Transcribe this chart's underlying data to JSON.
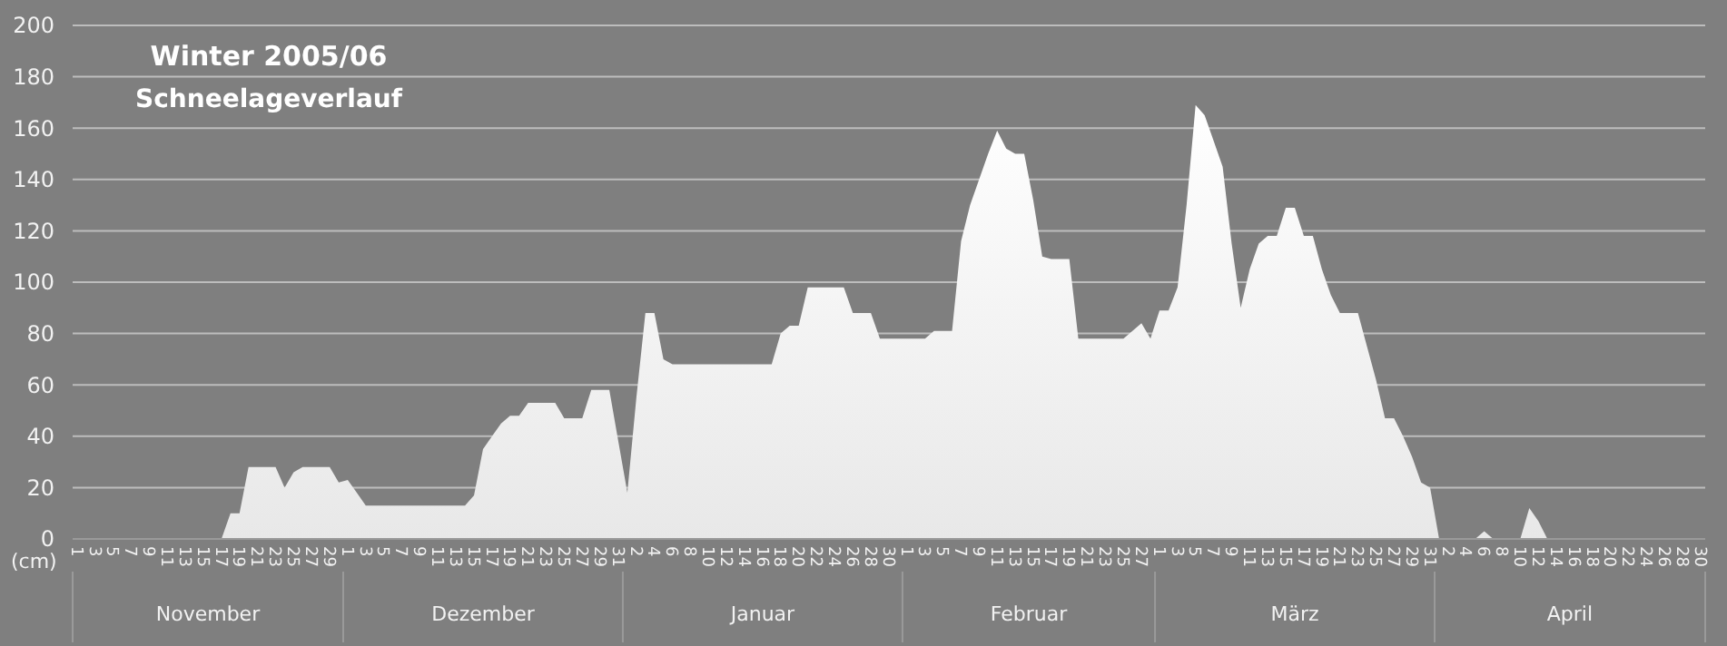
{
  "chart_data": {
    "type": "area",
    "title": "Winter 2005/06",
    "subtitle": "Schneelageverlauf",
    "ylabel": "(cm)",
    "x": [
      "2005-11-01",
      "2005-11-02",
      "2005-11-03",
      "2005-11-04",
      "2005-11-05",
      "2005-11-06",
      "2005-11-07",
      "2005-11-08",
      "2005-11-09",
      "2005-11-10",
      "2005-11-11",
      "2005-11-12",
      "2005-11-13",
      "2005-11-14",
      "2005-11-15",
      "2005-11-16",
      "2005-11-17",
      "2005-11-18",
      "2005-11-19",
      "2005-11-20",
      "2005-11-21",
      "2005-11-22",
      "2005-11-23",
      "2005-11-24",
      "2005-11-25",
      "2005-11-26",
      "2005-11-27",
      "2005-11-28",
      "2005-11-29",
      "2005-11-30",
      "2005-12-01",
      "2005-12-02",
      "2005-12-03",
      "2005-12-04",
      "2005-12-05",
      "2005-12-06",
      "2005-12-07",
      "2005-12-08",
      "2005-12-09",
      "2005-12-10",
      "2005-12-11",
      "2005-12-12",
      "2005-12-13",
      "2005-12-14",
      "2005-12-15",
      "2005-12-16",
      "2005-12-17",
      "2005-12-18",
      "2005-12-19",
      "2005-12-20",
      "2005-12-21",
      "2005-12-22",
      "2005-12-23",
      "2005-12-24",
      "2005-12-25",
      "2005-12-26",
      "2005-12-27",
      "2005-12-28",
      "2005-12-29",
      "2005-12-30",
      "2005-12-31",
      "2006-01-01",
      "2006-01-02",
      "2006-01-03",
      "2006-01-04",
      "2006-01-05",
      "2006-01-06",
      "2006-01-07",
      "2006-01-08",
      "2006-01-09",
      "2006-01-10",
      "2006-01-11",
      "2006-01-12",
      "2006-01-13",
      "2006-01-14",
      "2006-01-15",
      "2006-01-16",
      "2006-01-17",
      "2006-01-18",
      "2006-01-19",
      "2006-01-20",
      "2006-01-21",
      "2006-01-22",
      "2006-01-23",
      "2006-01-24",
      "2006-01-25",
      "2006-01-26",
      "2006-01-27",
      "2006-01-28",
      "2006-01-29",
      "2006-01-30",
      "2006-01-31",
      "2006-02-01",
      "2006-02-02",
      "2006-02-03",
      "2006-02-04",
      "2006-02-05",
      "2006-02-06",
      "2006-02-07",
      "2006-02-08",
      "2006-02-09",
      "2006-02-10",
      "2006-02-11",
      "2006-02-12",
      "2006-02-13",
      "2006-02-14",
      "2006-02-15",
      "2006-02-16",
      "2006-02-17",
      "2006-02-18",
      "2006-02-19",
      "2006-02-20",
      "2006-02-21",
      "2006-02-22",
      "2006-02-23",
      "2006-02-24",
      "2006-02-25",
      "2006-02-26",
      "2006-02-27",
      "2006-02-28",
      "2006-03-01",
      "2006-03-02",
      "2006-03-03",
      "2006-03-04",
      "2006-03-05",
      "2006-03-06",
      "2006-03-07",
      "2006-03-08",
      "2006-03-09",
      "2006-03-10",
      "2006-03-11",
      "2006-03-12",
      "2006-03-13",
      "2006-03-14",
      "2006-03-15",
      "2006-03-16",
      "2006-03-17",
      "2006-03-18",
      "2006-03-19",
      "2006-03-20",
      "2006-03-21",
      "2006-03-22",
      "2006-03-23",
      "2006-03-24",
      "2006-03-25",
      "2006-03-26",
      "2006-03-27",
      "2006-03-28",
      "2006-03-29",
      "2006-03-30",
      "2006-03-31",
      "2006-04-01",
      "2006-04-02",
      "2006-04-03",
      "2006-04-04",
      "2006-04-05",
      "2006-04-06",
      "2006-04-07",
      "2006-04-08",
      "2006-04-09",
      "2006-04-10",
      "2006-04-11",
      "2006-04-12",
      "2006-04-13",
      "2006-04-14",
      "2006-04-15",
      "2006-04-16",
      "2006-04-17",
      "2006-04-18",
      "2006-04-19",
      "2006-04-20",
      "2006-04-21",
      "2006-04-22",
      "2006-04-23",
      "2006-04-24",
      "2006-04-25",
      "2006-04-26",
      "2006-04-27",
      "2006-04-28",
      "2006-04-29",
      "2006-04-30"
    ],
    "values": [
      0,
      0,
      0,
      0,
      0,
      0,
      0,
      0,
      0,
      0,
      0,
      0,
      0,
      0,
      0,
      0,
      0,
      10,
      10,
      28,
      28,
      28,
      28,
      20,
      26,
      28,
      28,
      28,
      28,
      22,
      23,
      18,
      13,
      13,
      13,
      13,
      13,
      13,
      13,
      13,
      13,
      13,
      13,
      13,
      17,
      35,
      40,
      45,
      48,
      48,
      53,
      53,
      53,
      53,
      47,
      47,
      47,
      58,
      58,
      58,
      38,
      18,
      55,
      88,
      88,
      70,
      68,
      68,
      68,
      68,
      68,
      68,
      68,
      68,
      68,
      68,
      68,
      68,
      80,
      83,
      83,
      98,
      98,
      98,
      98,
      98,
      88,
      88,
      88,
      78,
      78,
      78,
      78,
      78,
      78,
      81,
      81,
      81,
      116,
      130,
      140,
      150,
      159,
      152,
      150,
      150,
      132,
      110,
      109,
      109,
      109,
      78,
      78,
      78,
      78,
      78,
      78,
      81,
      84,
      78,
      89,
      89,
      98,
      130,
      169,
      165,
      155,
      145,
      115,
      90,
      105,
      115,
      118,
      118,
      129,
      129,
      118,
      118,
      105,
      95,
      88,
      88,
      88,
      75,
      62,
      47,
      47,
      40,
      32,
      22,
      20,
      0,
      0,
      0,
      0,
      0,
      3,
      0,
      0,
      0,
      0,
      12,
      7,
      0,
      0,
      0,
      0,
      0,
      0,
      0,
      0,
      0,
      0,
      0,
      0,
      0,
      0,
      0,
      0,
      0,
      0
    ],
    "color": "#e8e8e8",
    "xlim": [
      "2005-10-31T12:00",
      "2006-04-30T12:00"
    ],
    "xticks": [
      {
        "value": "2005-11-01",
        "label": "1"
      },
      {
        "value": "2005-11-03",
        "label": "3"
      },
      {
        "value": "2005-11-05",
        "label": "5"
      },
      {
        "value": "2005-11-07",
        "label": "7"
      },
      {
        "value": "2005-11-09",
        "label": "9"
      },
      {
        "value": "2005-11-11",
        "label": "11"
      },
      {
        "value": "2005-11-13",
        "label": "13"
      },
      {
        "value": "2005-11-15",
        "label": "15"
      },
      {
        "value": "2005-11-17",
        "label": "17"
      },
      {
        "value": "2005-11-19",
        "label": "19"
      },
      {
        "value": "2005-11-21",
        "label": "21"
      },
      {
        "value": "2005-11-23",
        "label": "23"
      },
      {
        "value": "2005-11-25",
        "label": "25"
      },
      {
        "value": "2005-11-27",
        "label": "27"
      },
      {
        "value": "2005-11-29",
        "label": "29"
      },
      {
        "value": "2005-12-01",
        "label": "1"
      },
      {
        "value": "2005-12-03",
        "label": "3"
      },
      {
        "value": "2005-12-05",
        "label": "5"
      },
      {
        "value": "2005-12-07",
        "label": "7"
      },
      {
        "value": "2005-12-09",
        "label": "9"
      },
      {
        "value": "2005-12-11",
        "label": "11"
      },
      {
        "value": "2005-12-13",
        "label": "13"
      },
      {
        "value": "2005-12-15",
        "label": "15"
      },
      {
        "value": "2005-12-17",
        "label": "17"
      },
      {
        "value": "2005-12-19",
        "label": "19"
      },
      {
        "value": "2005-12-21",
        "label": "21"
      },
      {
        "value": "2005-12-23",
        "label": "23"
      },
      {
        "value": "2005-12-25",
        "label": "25"
      },
      {
        "value": "2005-12-27",
        "label": "27"
      },
      {
        "value": "2005-12-29",
        "label": "29"
      },
      {
        "value": "2005-12-31",
        "label": "31"
      },
      {
        "value": "2006-01-02",
        "label": "2"
      },
      {
        "value": "2006-01-04",
        "label": "4"
      },
      {
        "value": "2006-01-06",
        "label": "6"
      },
      {
        "value": "2006-01-08",
        "label": "8"
      },
      {
        "value": "2006-01-10",
        "label": "10"
      },
      {
        "value": "2006-01-12",
        "label": "12"
      },
      {
        "value": "2006-01-14",
        "label": "14"
      },
      {
        "value": "2006-01-16",
        "label": "16"
      },
      {
        "value": "2006-01-18",
        "label": "18"
      },
      {
        "value": "2006-01-20",
        "label": "20"
      },
      {
        "value": "2006-01-22",
        "label": "22"
      },
      {
        "value": "2006-01-24",
        "label": "24"
      },
      {
        "value": "2006-01-26",
        "label": "26"
      },
      {
        "value": "2006-01-28",
        "label": "28"
      },
      {
        "value": "2006-01-30",
        "label": "30"
      },
      {
        "value": "2006-02-01",
        "label": "1"
      },
      {
        "value": "2006-02-03",
        "label": "3"
      },
      {
        "value": "2006-02-05",
        "label": "5"
      },
      {
        "value": "2006-02-07",
        "label": "7"
      },
      {
        "value": "2006-02-09",
        "label": "9"
      },
      {
        "value": "2006-02-11",
        "label": "11"
      },
      {
        "value": "2006-02-13",
        "label": "13"
      },
      {
        "value": "2006-02-15",
        "label": "15"
      },
      {
        "value": "2006-02-17",
        "label": "17"
      },
      {
        "value": "2006-02-19",
        "label": "19"
      },
      {
        "value": "2006-02-21",
        "label": "21"
      },
      {
        "value": "2006-02-23",
        "label": "23"
      },
      {
        "value": "2006-02-25",
        "label": "25"
      },
      {
        "value": "2006-02-27",
        "label": "27"
      },
      {
        "value": "2006-03-01",
        "label": "1"
      },
      {
        "value": "2006-03-03",
        "label": "3"
      },
      {
        "value": "2006-03-05",
        "label": "5"
      },
      {
        "value": "2006-03-07",
        "label": "7"
      },
      {
        "value": "2006-03-09",
        "label": "9"
      },
      {
        "value": "2006-03-11",
        "label": "11"
      },
      {
        "value": "2006-03-13",
        "label": "13"
      },
      {
        "value": "2006-03-15",
        "label": "15"
      },
      {
        "value": "2006-03-17",
        "label": "17"
      },
      {
        "value": "2006-03-19",
        "label": "19"
      },
      {
        "value": "2006-03-21",
        "label": "21"
      },
      {
        "value": "2006-03-23",
        "label": "23"
      },
      {
        "value": "2006-03-25",
        "label": "25"
      },
      {
        "value": "2006-03-27",
        "label": "27"
      },
      {
        "value": "2006-03-29",
        "label": "29"
      },
      {
        "value": "2006-03-31",
        "label": "31"
      },
      {
        "value": "2006-04-02",
        "label": "2"
      },
      {
        "value": "2006-04-04",
        "label": "4"
      },
      {
        "value": "2006-04-06",
        "label": "6"
      },
      {
        "value": "2006-04-08",
        "label": "8"
      },
      {
        "value": "2006-04-10",
        "label": "10"
      },
      {
        "value": "2006-04-12",
        "label": "12"
      },
      {
        "value": "2006-04-14",
        "label": "14"
      },
      {
        "value": "2006-04-16",
        "label": "16"
      },
      {
        "value": "2006-04-18",
        "label": "18"
      },
      {
        "value": "2006-04-20",
        "label": "20"
      },
      {
        "value": "2006-04-22",
        "label": "22"
      },
      {
        "value": "2006-04-24",
        "label": "24"
      },
      {
        "value": "2006-04-26",
        "label": "26"
      },
      {
        "value": "2006-04-28",
        "label": "28"
      },
      {
        "value": "2006-04-30",
        "label": "30"
      }
    ],
    "ylim": [
      0,
      200
    ],
    "yticks": [
      0,
      20,
      40,
      60,
      80,
      100,
      120,
      140,
      160,
      180,
      200
    ],
    "grid": "y",
    "annotations": [
      "November",
      "Dezember",
      "Januar",
      "Februar",
      "März",
      "April"
    ]
  }
}
